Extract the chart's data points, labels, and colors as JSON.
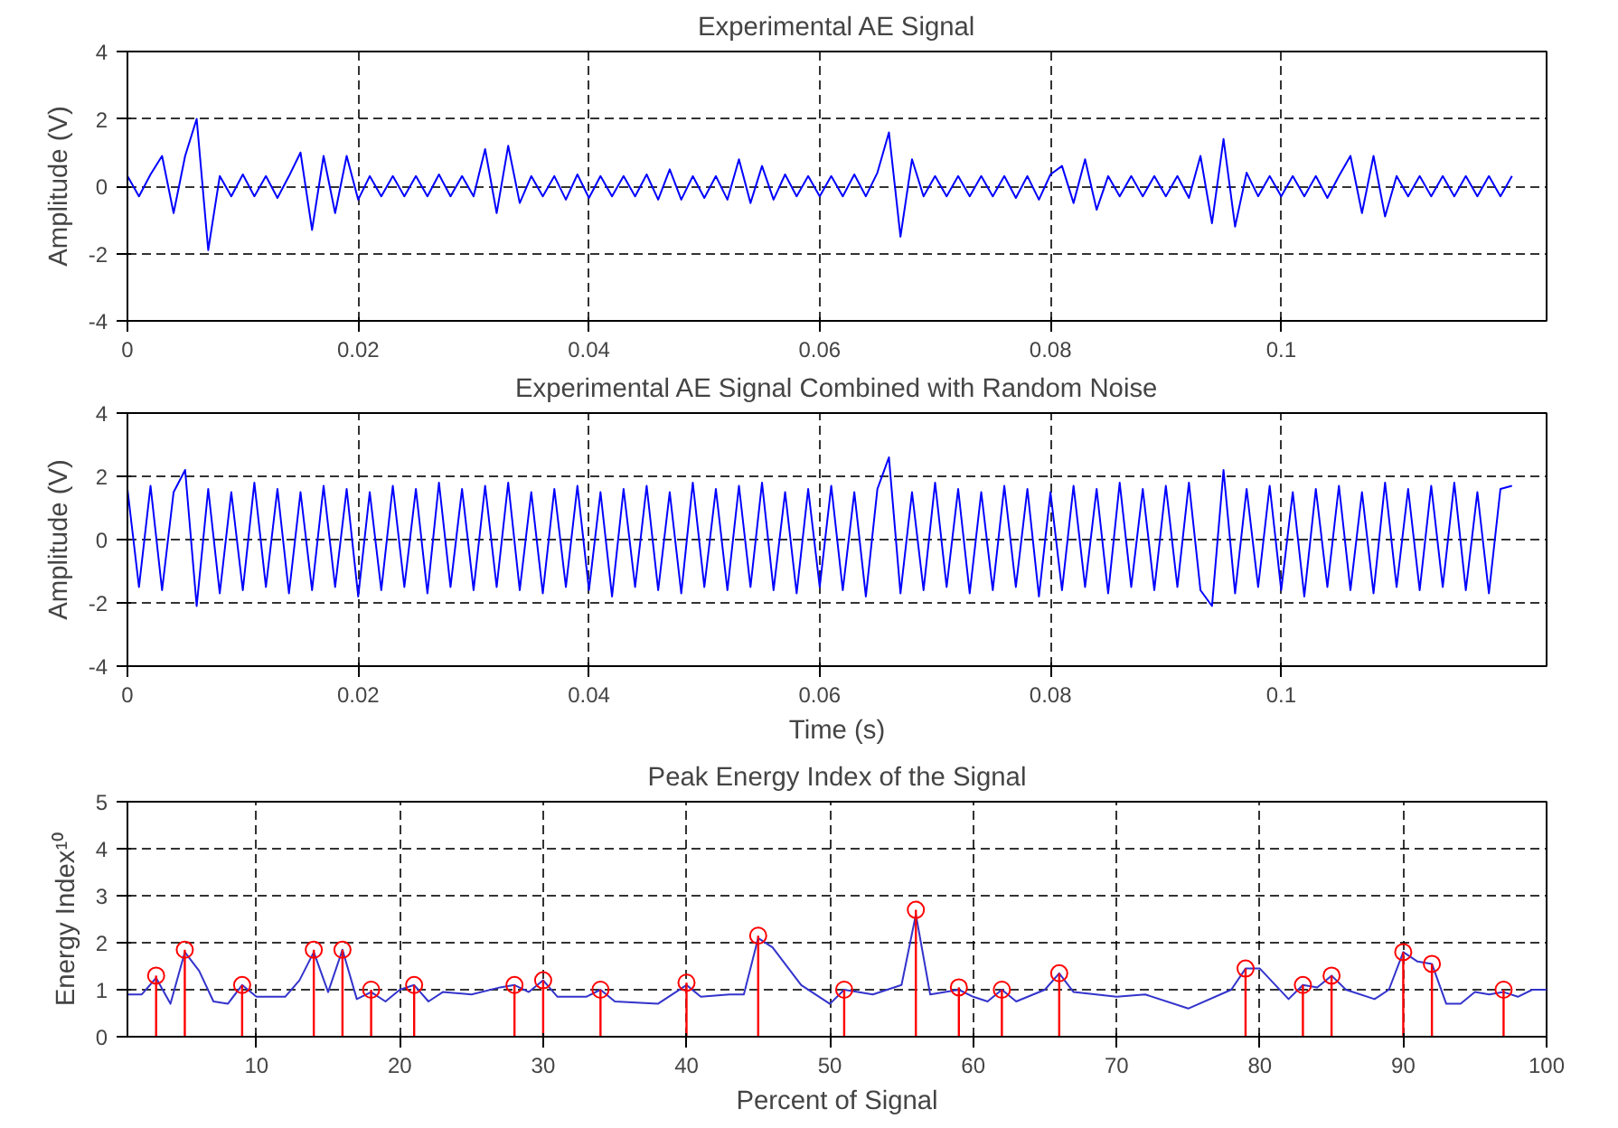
{
  "chart_data": [
    {
      "type": "line",
      "title": "Experimental AE Signal",
      "ylabel": "Amplitude (V)",
      "xlim": [
        0,
        0.123
      ],
      "ylim": [
        -4,
        4
      ],
      "xticks": [
        0,
        0.02,
        0.04,
        0.06,
        0.08,
        0.1
      ],
      "yticks": [
        -4,
        -2,
        0,
        2,
        4
      ],
      "grid": true,
      "x": [
        0,
        0.001,
        0.002,
        0.003,
        0.004,
        0.005,
        0.006,
        0.007,
        0.008,
        0.009,
        0.01,
        0.011,
        0.012,
        0.013,
        0.014,
        0.015,
        0.016,
        0.017,
        0.018,
        0.019,
        0.02,
        0.021,
        0.022,
        0.023,
        0.024,
        0.025,
        0.026,
        0.027,
        0.028,
        0.029,
        0.03,
        0.031,
        0.032,
        0.033,
        0.034,
        0.035,
        0.036,
        0.037,
        0.038,
        0.039,
        0.04,
        0.041,
        0.042,
        0.043,
        0.044,
        0.045,
        0.046,
        0.047,
        0.048,
        0.049,
        0.05,
        0.051,
        0.052,
        0.053,
        0.054,
        0.055,
        0.056,
        0.057,
        0.058,
        0.059,
        0.06,
        0.061,
        0.062,
        0.063,
        0.064,
        0.065,
        0.066,
        0.067,
        0.068,
        0.069,
        0.07,
        0.071,
        0.072,
        0.073,
        0.074,
        0.075,
        0.076,
        0.077,
        0.078,
        0.079,
        0.08,
        0.081,
        0.082,
        0.083,
        0.084,
        0.085,
        0.086,
        0.087,
        0.088,
        0.089,
        0.09,
        0.091,
        0.092,
        0.093,
        0.094,
        0.095,
        0.096,
        0.097,
        0.098,
        0.099,
        0.1,
        0.101,
        0.102,
        0.103,
        0.104,
        0.105,
        0.106,
        0.107,
        0.108,
        0.109,
        0.11,
        0.111,
        0.112,
        0.113,
        0.114,
        0.115,
        0.116,
        0.117,
        0.118,
        0.119,
        0.12
      ],
      "series": [
        {
          "color": "#0000ff",
          "values": [
            0.3,
            -0.3,
            0.35,
            0.9,
            -0.8,
            0.9,
            2.0,
            -1.9,
            0.3,
            -0.3,
            0.35,
            -0.3,
            0.3,
            -0.35,
            0.3,
            1.0,
            -1.3,
            0.9,
            -0.8,
            0.9,
            -0.4,
            0.3,
            -0.3,
            0.3,
            -0.3,
            0.3,
            -0.3,
            0.35,
            -0.3,
            0.3,
            -0.3,
            1.1,
            -0.8,
            1.2,
            -0.5,
            0.3,
            -0.3,
            0.3,
            -0.4,
            0.35,
            -0.35,
            0.3,
            -0.3,
            0.3,
            -0.3,
            0.35,
            -0.4,
            0.5,
            -0.4,
            0.3,
            -0.35,
            0.3,
            -0.4,
            0.8,
            -0.5,
            0.6,
            -0.4,
            0.35,
            -0.3,
            0.3,
            -0.3,
            0.3,
            -0.3,
            0.35,
            -0.3,
            0.4,
            1.6,
            -1.5,
            0.8,
            -0.3,
            0.3,
            -0.3,
            0.3,
            -0.3,
            0.3,
            -0.3,
            0.3,
            -0.35,
            0.3,
            -0.4,
            0.35,
            0.6,
            -0.5,
            0.8,
            -0.7,
            0.3,
            -0.3,
            0.3,
            -0.3,
            0.3,
            -0.3,
            0.3,
            -0.35,
            0.9,
            -1.1,
            1.4,
            -1.2,
            0.4,
            -0.3,
            0.3,
            -0.3,
            0.3,
            -0.3,
            0.3,
            -0.35,
            0.3,
            0.9,
            -0.8,
            0.9,
            -0.9,
            0.3,
            -0.3,
            0.3,
            -0.3,
            0.3,
            -0.3,
            0.3,
            -0.3,
            0.3,
            -0.3,
            0.3
          ]
        }
      ]
    },
    {
      "type": "line",
      "title": "Experimental AE Signal Combined with Random Noise",
      "xlabel": "Time (s)",
      "ylabel": "Amplitude (V)",
      "xlim": [
        0,
        0.123
      ],
      "ylim": [
        -4,
        4
      ],
      "xticks": [
        0,
        0.02,
        0.04,
        0.06,
        0.08,
        0.1
      ],
      "yticks": [
        -4,
        -2,
        0,
        2,
        4
      ],
      "grid": true,
      "x": [
        0,
        0.001,
        0.002,
        0.003,
        0.004,
        0.005,
        0.006,
        0.007,
        0.008,
        0.009,
        0.01,
        0.011,
        0.012,
        0.013,
        0.014,
        0.015,
        0.016,
        0.017,
        0.018,
        0.019,
        0.02,
        0.021,
        0.022,
        0.023,
        0.024,
        0.025,
        0.026,
        0.027,
        0.028,
        0.029,
        0.03,
        0.031,
        0.032,
        0.033,
        0.034,
        0.035,
        0.036,
        0.037,
        0.038,
        0.039,
        0.04,
        0.041,
        0.042,
        0.043,
        0.044,
        0.045,
        0.046,
        0.047,
        0.048,
        0.049,
        0.05,
        0.051,
        0.052,
        0.053,
        0.054,
        0.055,
        0.056,
        0.057,
        0.058,
        0.059,
        0.06,
        0.061,
        0.062,
        0.063,
        0.064,
        0.065,
        0.066,
        0.067,
        0.068,
        0.069,
        0.07,
        0.071,
        0.072,
        0.073,
        0.074,
        0.075,
        0.076,
        0.077,
        0.078,
        0.079,
        0.08,
        0.081,
        0.082,
        0.083,
        0.084,
        0.085,
        0.086,
        0.087,
        0.088,
        0.089,
        0.09,
        0.091,
        0.092,
        0.093,
        0.094,
        0.095,
        0.096,
        0.097,
        0.098,
        0.099,
        0.1,
        0.101,
        0.102,
        0.103,
        0.104,
        0.105,
        0.106,
        0.107,
        0.108,
        0.109,
        0.11,
        0.111,
        0.112,
        0.113,
        0.114,
        0.115,
        0.116,
        0.117,
        0.118,
        0.119,
        0.12
      ],
      "series": [
        {
          "color": "#0000ff",
          "values": [
            1.6,
            -1.5,
            1.7,
            -1.6,
            1.5,
            2.2,
            -2.1,
            1.6,
            -1.7,
            1.5,
            -1.6,
            1.8,
            -1.5,
            1.6,
            -1.7,
            1.5,
            -1.6,
            1.7,
            -1.5,
            1.6,
            -1.8,
            1.5,
            -1.6,
            1.7,
            -1.5,
            1.6,
            -1.7,
            1.8,
            -1.5,
            1.6,
            -1.6,
            1.7,
            -1.5,
            1.8,
            -1.6,
            1.5,
            -1.7,
            1.6,
            -1.5,
            1.7,
            -1.6,
            1.5,
            -1.8,
            1.6,
            -1.5,
            1.7,
            -1.6,
            1.5,
            -1.7,
            1.8,
            -1.5,
            1.6,
            -1.6,
            1.7,
            -1.5,
            1.8,
            -1.6,
            1.5,
            -1.7,
            1.6,
            -1.5,
            1.7,
            -1.6,
            1.5,
            -1.8,
            1.6,
            2.6,
            -1.7,
            1.5,
            -1.6,
            1.8,
            -1.5,
            1.6,
            -1.7,
            1.5,
            -1.6,
            1.7,
            -1.5,
            1.6,
            -1.8,
            1.5,
            -1.6,
            1.7,
            -1.5,
            1.6,
            -1.7,
            1.8,
            -1.5,
            1.6,
            -1.6,
            1.7,
            -1.5,
            1.8,
            -1.6,
            -2.1,
            2.2,
            -1.7,
            1.6,
            -1.5,
            1.7,
            -1.6,
            1.5,
            -1.8,
            1.6,
            -1.5,
            1.7,
            -1.6,
            1.5,
            -1.7,
            1.8,
            -1.5,
            1.6,
            -1.6,
            1.7,
            -1.5,
            1.8,
            -1.6,
            1.5,
            -1.7,
            1.6,
            1.7
          ]
        }
      ]
    },
    {
      "type": "line",
      "title": "Peak Energy Index of the Signal",
      "xlabel": "Percent of Signal",
      "ylabel": "Energy Index¹⁰",
      "xlim": [
        1,
        100
      ],
      "ylim": [
        0,
        5
      ],
      "xticks": [
        10,
        20,
        30,
        40,
        50,
        60,
        70,
        80,
        90,
        100
      ],
      "yticks": [
        0,
        1,
        2,
        3,
        4,
        5
      ],
      "grid": true,
      "series": [
        {
          "color": "#3333cc",
          "x": [
            1,
            2,
            3,
            4,
            5,
            6,
            7,
            8,
            9,
            10,
            12,
            13,
            14,
            15,
            16,
            17,
            18,
            19,
            20,
            21,
            22,
            23,
            25,
            27,
            28,
            29,
            30,
            31,
            33,
            34,
            35,
            38,
            40,
            41,
            43,
            44,
            45,
            46,
            48,
            50,
            51,
            53,
            55,
            56,
            57,
            59,
            60,
            61,
            62,
            63,
            65,
            66,
            67,
            70,
            72,
            75,
            78,
            79,
            80,
            82,
            83,
            84,
            85,
            86,
            88,
            89,
            90,
            91,
            92,
            93,
            94,
            95,
            96,
            97,
            98,
            99,
            100
          ],
          "values": [
            0.9,
            0.9,
            1.25,
            0.7,
            1.8,
            1.4,
            0.75,
            0.7,
            1.1,
            0.85,
            0.85,
            1.2,
            1.8,
            0.95,
            1.85,
            0.8,
            0.95,
            0.75,
            1.0,
            1.1,
            0.75,
            0.95,
            0.9,
            1.05,
            1.1,
            0.95,
            1.2,
            0.85,
            0.85,
            1.0,
            0.75,
            0.7,
            1.1,
            0.85,
            0.9,
            0.9,
            2.1,
            1.9,
            1.1,
            0.7,
            1.0,
            0.9,
            1.1,
            2.6,
            0.9,
            1.0,
            0.85,
            0.75,
            1.0,
            0.75,
            1.0,
            1.35,
            0.95,
            0.85,
            0.9,
            0.6,
            1.0,
            1.45,
            1.45,
            0.8,
            1.1,
            1.05,
            1.3,
            1.0,
            0.8,
            1.0,
            1.8,
            1.6,
            1.55,
            0.7,
            0.7,
            0.95,
            0.9,
            0.95,
            0.85,
            1.0,
            1.0
          ]
        },
        {
          "type": "lollipop",
          "marker": "circle",
          "color": "#ff0000",
          "x": [
            3,
            5,
            9,
            14,
            16,
            18,
            21,
            28,
            30,
            34,
            40,
            45,
            51,
            56,
            59,
            62,
            66,
            79,
            83,
            85,
            90,
            92,
            97
          ],
          "values": [
            1.3,
            1.85,
            1.1,
            1.85,
            1.85,
            1.0,
            1.1,
            1.1,
            1.2,
            1.0,
            1.15,
            2.15,
            1.0,
            2.7,
            1.05,
            1.0,
            1.35,
            1.45,
            1.1,
            1.3,
            1.8,
            1.55,
            1.0
          ]
        }
      ]
    }
  ]
}
